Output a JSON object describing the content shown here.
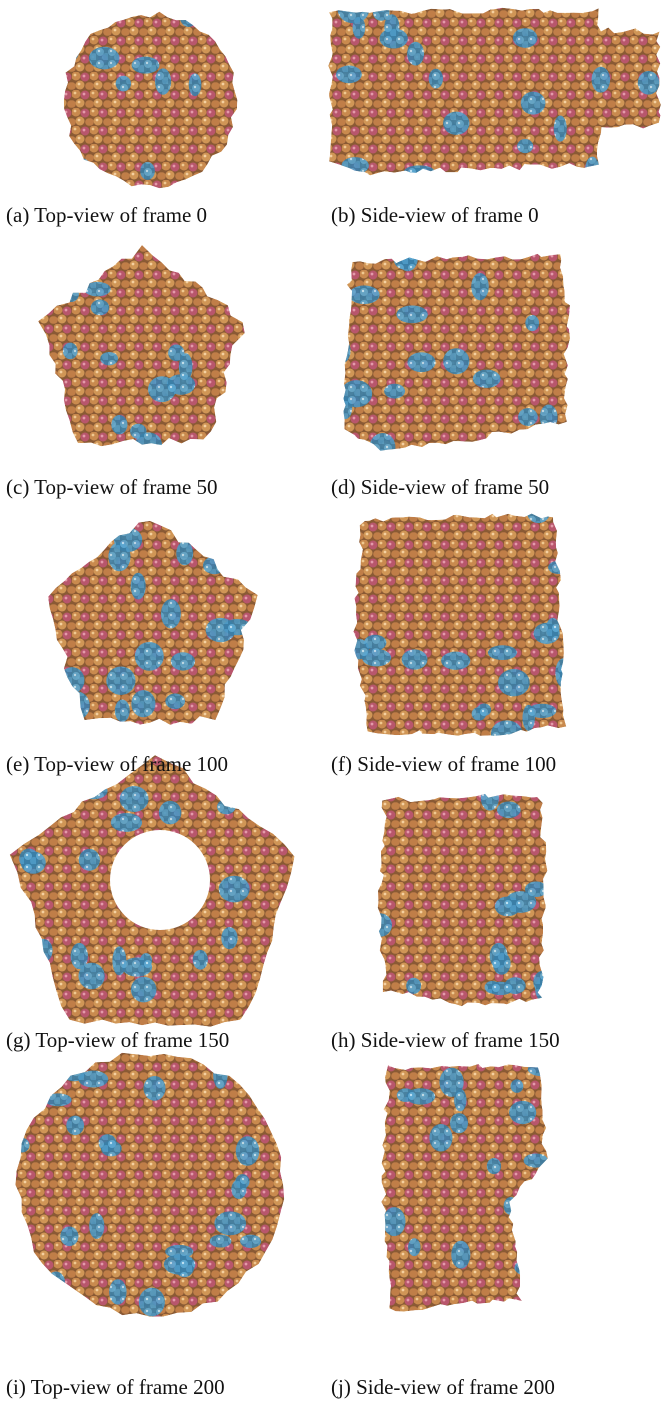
{
  "panels": [
    {
      "caption": "(a) Top-view of frame 0"
    },
    {
      "caption": "(b) Side-view of frame 0"
    },
    {
      "caption": "(c) Top-view of frame 50"
    },
    {
      "caption": "(d) Side-view of frame 50"
    },
    {
      "caption": "(e) Top-view of frame 100"
    },
    {
      "caption": "(f) Side-view of frame 100"
    },
    {
      "caption": "(g) Top-view of frame 150"
    },
    {
      "caption": "(h) Side-view of frame 150"
    },
    {
      "caption": "(i) Top-view of frame 200"
    },
    {
      "caption": "(j) Side-view of frame 200"
    }
  ]
}
